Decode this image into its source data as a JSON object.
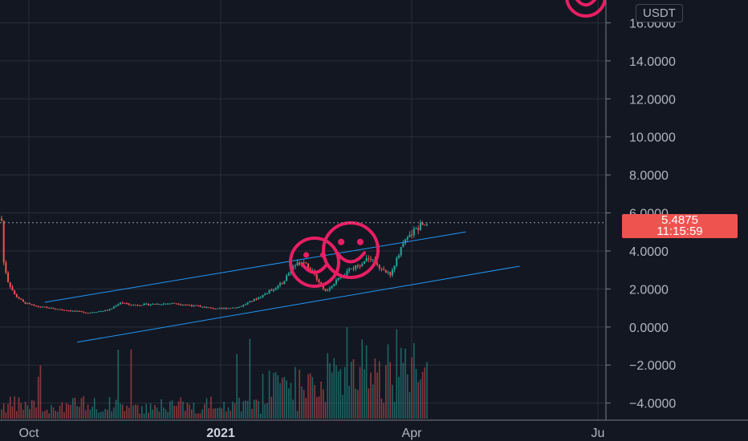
{
  "chart_data": {
    "type": "candlestick",
    "currency": "USDT",
    "last_price": "5.4875",
    "countdown": "11:15:59",
    "price_ticks": [
      "16.0000",
      "14.0000",
      "12.0000",
      "10.0000",
      "8.0000",
      "6.0000",
      "4.0000",
      "2.0000",
      "0.0000",
      "−2.0000",
      "−4.0000"
    ],
    "price_tick_values": [
      16,
      14,
      12,
      10,
      8,
      6,
      4,
      2,
      0,
      -2,
      -4
    ],
    "ylim": [
      -4.9,
      17.2
    ],
    "time_labels": [
      {
        "text": "Oct",
        "bold": false
      },
      {
        "text": "2021",
        "bold": true
      },
      {
        "text": "Apr",
        "bold": false
      },
      {
        "text": "Ju",
        "bold": false
      }
    ],
    "price_series_sampled": [
      {
        "t": 0,
        "p": 5.6
      },
      {
        "t": 1,
        "p": 3.4
      },
      {
        "t": 3,
        "p": 2.4
      },
      {
        "t": 6,
        "p": 1.7
      },
      {
        "t": 10,
        "p": 1.3
      },
      {
        "t": 15,
        "p": 1.1
      },
      {
        "t": 25,
        "p": 0.95
      },
      {
        "t": 40,
        "p": 0.75
      },
      {
        "t": 50,
        "p": 0.9
      },
      {
        "t": 55,
        "p": 1.3
      },
      {
        "t": 60,
        "p": 1.15
      },
      {
        "t": 70,
        "p": 1.2
      },
      {
        "t": 80,
        "p": 1.25
      },
      {
        "t": 90,
        "p": 1.1
      },
      {
        "t": 100,
        "p": 0.95
      },
      {
        "t": 110,
        "p": 1.05
      },
      {
        "t": 120,
        "p": 1.6
      },
      {
        "t": 130,
        "p": 2.3
      },
      {
        "t": 135,
        "p": 3.2
      },
      {
        "t": 140,
        "p": 3.5
      },
      {
        "t": 145,
        "p": 2.7
      },
      {
        "t": 150,
        "p": 1.9
      },
      {
        "t": 155,
        "p": 2.4
      },
      {
        "t": 160,
        "p": 2.9
      },
      {
        "t": 165,
        "p": 3.2
      },
      {
        "t": 170,
        "p": 3.7
      },
      {
        "t": 175,
        "p": 3.2
      },
      {
        "t": 180,
        "p": 2.7
      },
      {
        "t": 185,
        "p": 4.2
      },
      {
        "t": 190,
        "p": 4.9
      },
      {
        "t": 195,
        "p": 5.5
      },
      {
        "t": 197,
        "p": 5.49
      }
    ],
    "bars_count": 198,
    "channel": {
      "upper": {
        "from": {
          "t": 20,
          "p": 1.3
        },
        "to": {
          "t": 215,
          "p": 5.0
        }
      },
      "lower": {
        "from": {
          "t": 35,
          "p": -0.8
        },
        "to": {
          "t": 240,
          "p": 3.2
        }
      }
    },
    "colors": {
      "background": "#131722",
      "up": "#26a69a",
      "down": "#ef5350",
      "grid": "#2a2e39",
      "channel_line": "#2196f3",
      "last_price": "#ef5350",
      "sticker": "#e91e63"
    }
  }
}
